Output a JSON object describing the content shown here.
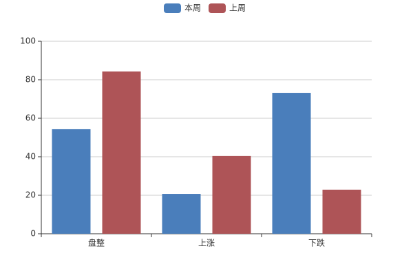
{
  "chart_data": {
    "type": "bar",
    "categories": [
      "盘整",
      "上涨",
      "下跌"
    ],
    "series": [
      {
        "name": "本周",
        "color": "#4a7ebb",
        "values": [
          54.3,
          20.7,
          73.2
        ]
      },
      {
        "name": "上周",
        "color": "#ae5457",
        "values": [
          84.3,
          40.4,
          22.9
        ]
      }
    ],
    "ylim": [
      0,
      100
    ],
    "yticks": [
      0,
      20,
      40,
      60,
      80,
      100
    ],
    "grid": true,
    "legend": "top"
  }
}
